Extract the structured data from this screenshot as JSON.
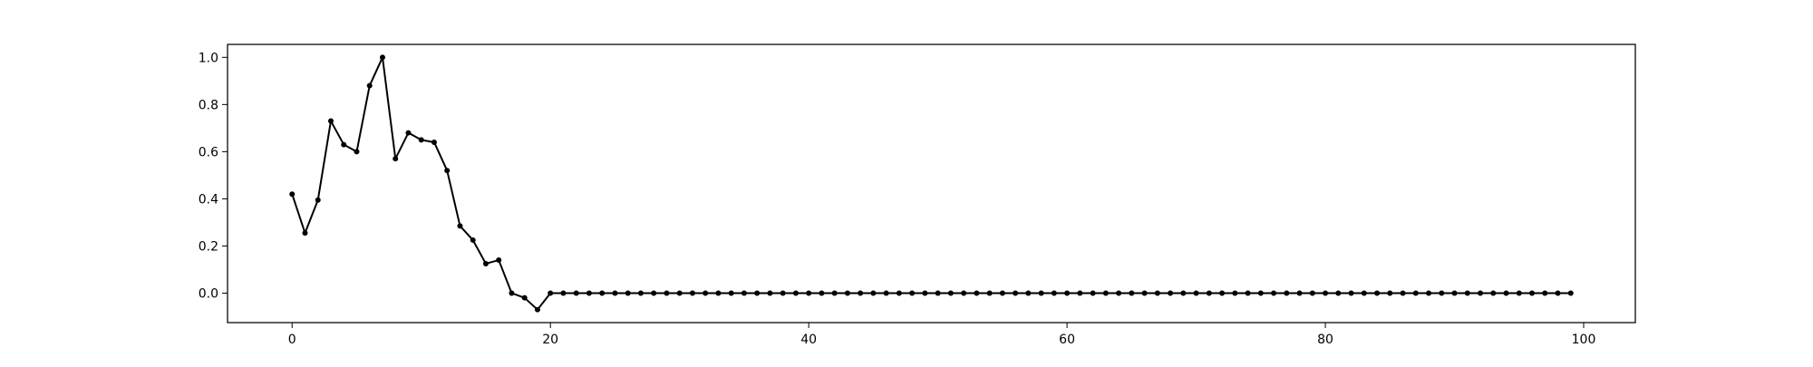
{
  "chart_data": {
    "type": "line",
    "title": "",
    "xlabel": "",
    "ylabel": "",
    "xlim": [
      -5,
      104
    ],
    "ylim": [
      -0.125,
      1.055
    ],
    "xticks": [
      0,
      20,
      40,
      60,
      80,
      100
    ],
    "yticks": [
      0.0,
      0.2,
      0.4,
      0.6,
      0.8,
      1.0
    ],
    "xtick_labels": [
      "0",
      "20",
      "40",
      "60",
      "80",
      "100"
    ],
    "ytick_labels": [
      "0.0",
      "0.2",
      "0.4",
      "0.6",
      "0.8",
      "1.0"
    ],
    "grid": false,
    "legend": "none",
    "line_color": "#000000",
    "marker": "dot",
    "series": [
      {
        "values": [
          0.42,
          0.255,
          0.395,
          0.73,
          0.63,
          0.6,
          0.88,
          1.0,
          0.57,
          0.68,
          0.65,
          0.64,
          0.52,
          0.285,
          0.225,
          0.125,
          0.14,
          0.0,
          -0.02,
          -0.07,
          0.0,
          0.0,
          0.0,
          0.0,
          0.0,
          0.0,
          0.0,
          0.0,
          0.0,
          0.0,
          0.0,
          0.0,
          0.0,
          0.0,
          0.0,
          0.0,
          0.0,
          0.0,
          0.0,
          0.0,
          0.0,
          0.0,
          0.0,
          0.0,
          0.0,
          0.0,
          0.0,
          0.0,
          0.0,
          0.0,
          0.0,
          0.0,
          0.0,
          0.0,
          0.0,
          0.0,
          0.0,
          0.0,
          0.0,
          0.0,
          0.0,
          0.0,
          0.0,
          0.0,
          0.0,
          0.0,
          0.0,
          0.0,
          0.0,
          0.0,
          0.0,
          0.0,
          0.0,
          0.0,
          0.0,
          0.0,
          0.0,
          0.0,
          0.0,
          0.0,
          0.0,
          0.0,
          0.0,
          0.0,
          0.0,
          0.0,
          0.0,
          0.0,
          0.0,
          0.0,
          0.0,
          0.0,
          0.0,
          0.0,
          0.0,
          0.0,
          0.0,
          0.0,
          0.0,
          0.0
        ]
      }
    ]
  }
}
